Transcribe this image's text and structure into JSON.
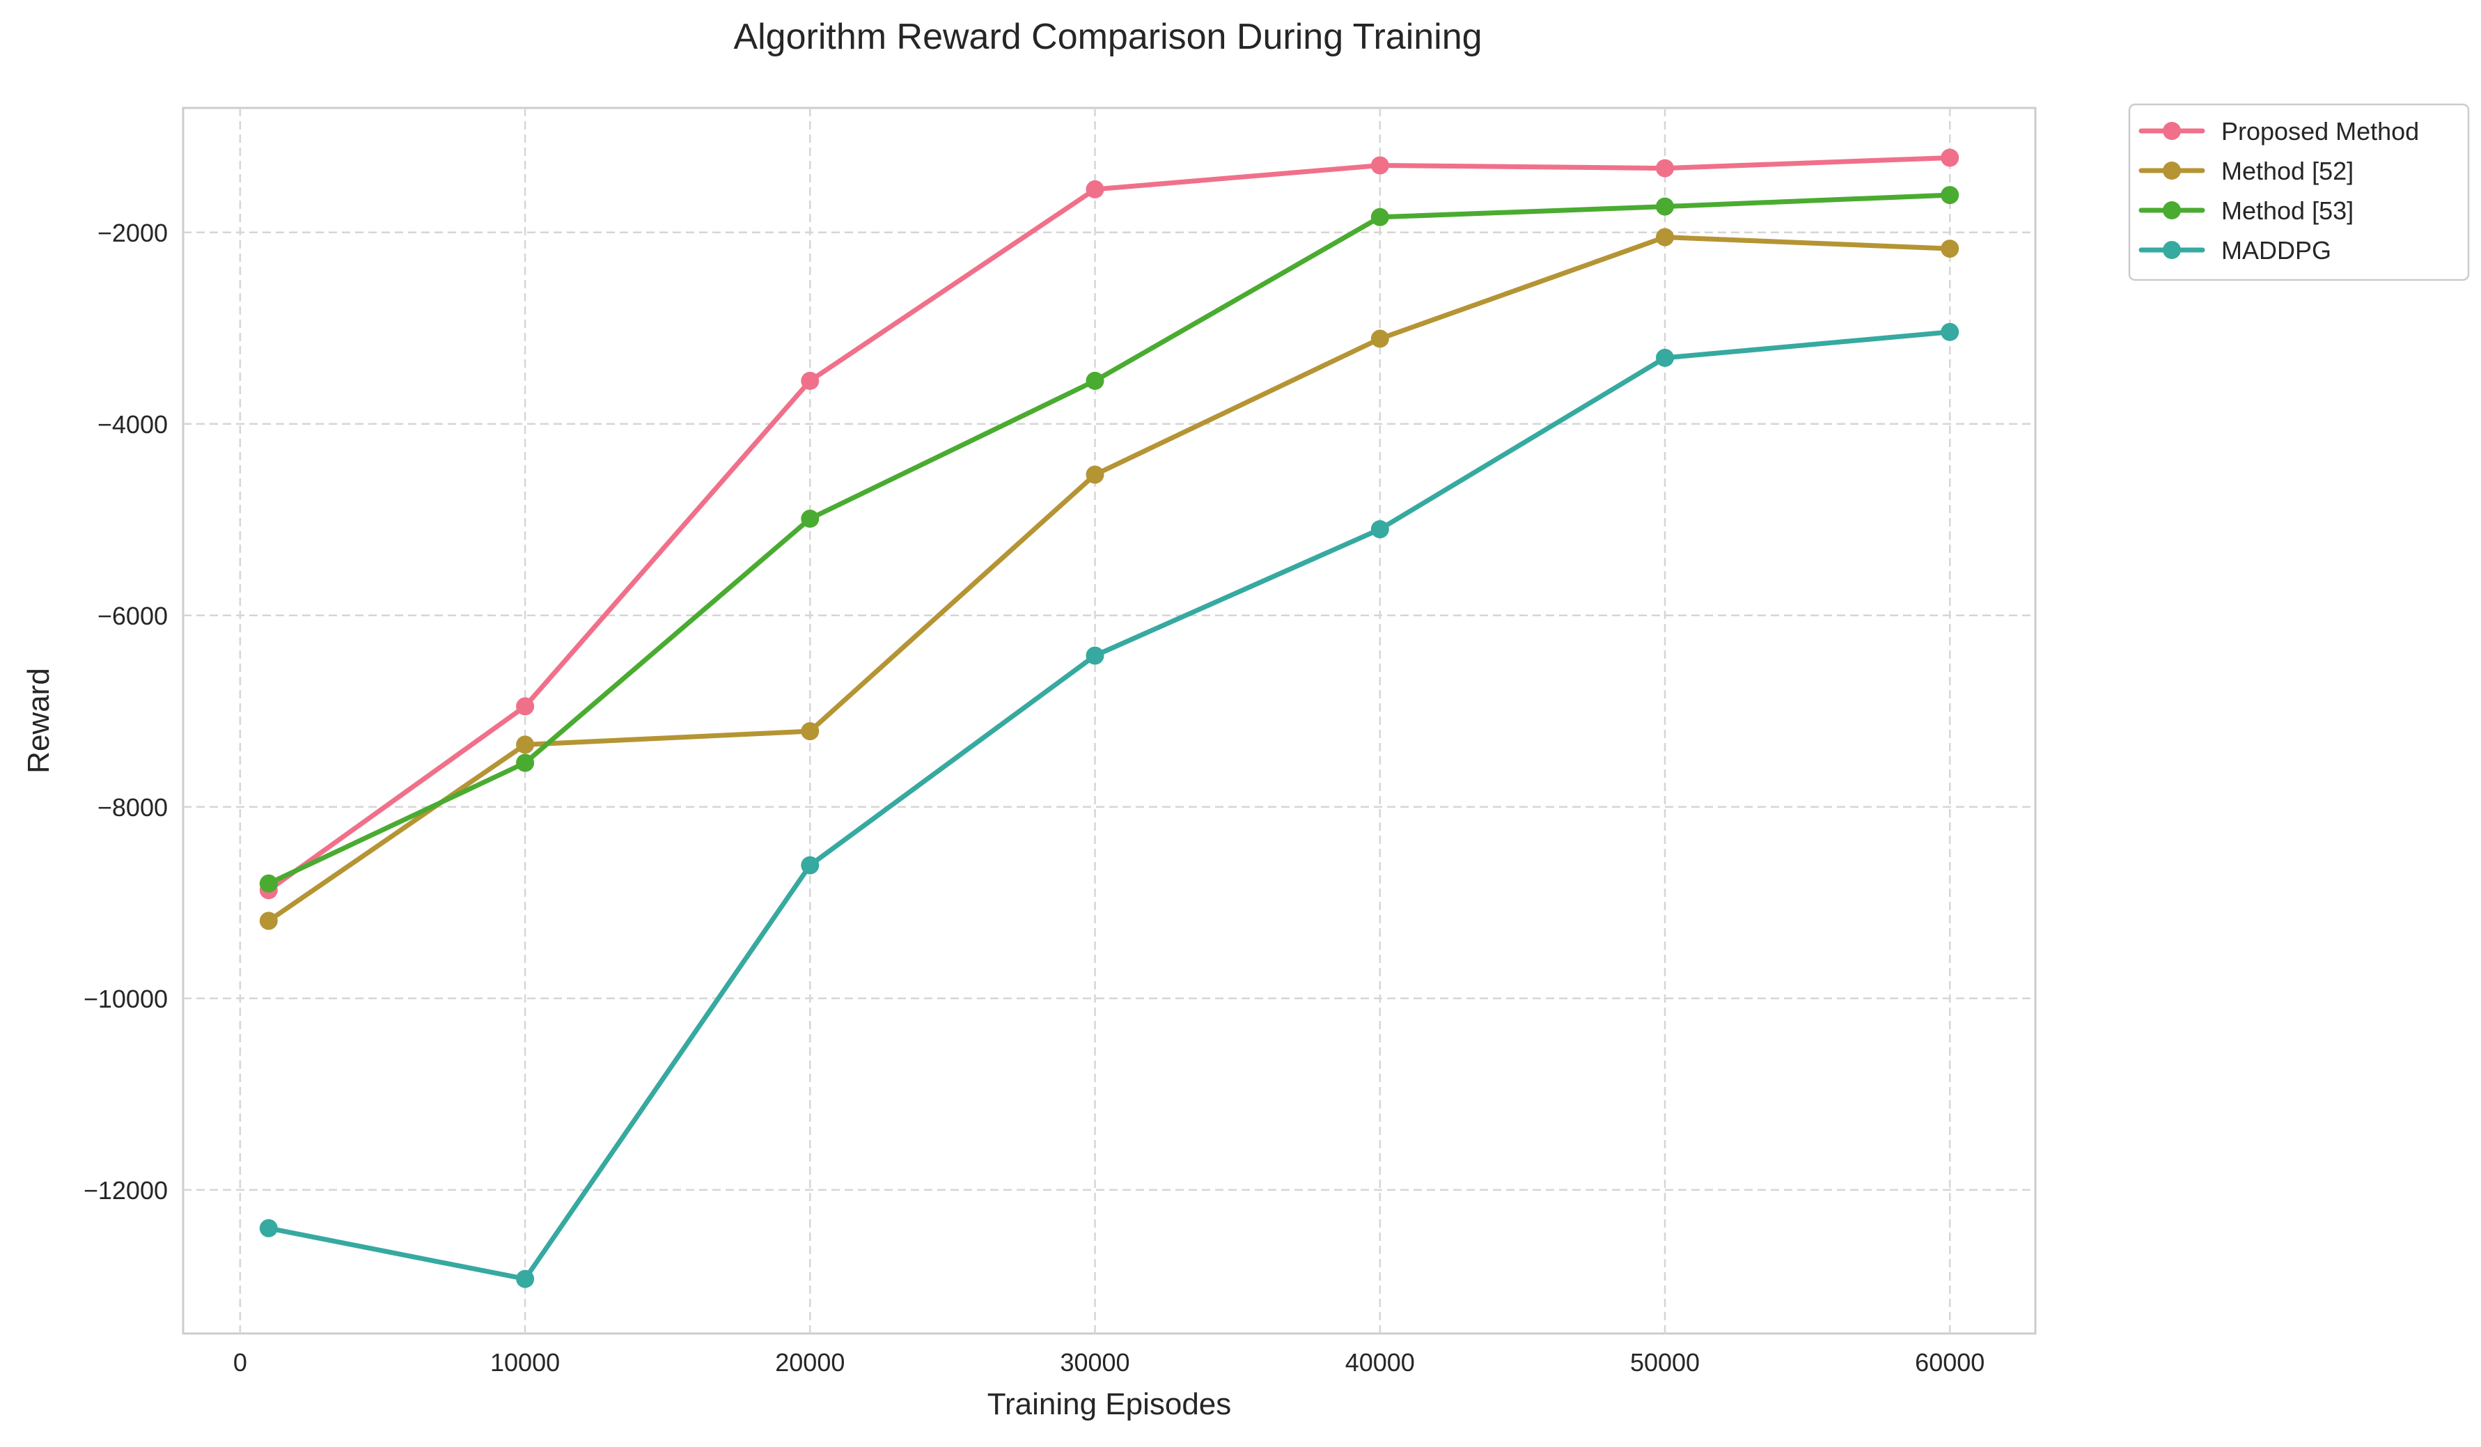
{
  "chart_data": {
    "type": "line",
    "title": "Algorithm Reward Comparison During Training",
    "xlabel": "Training Episodes",
    "ylabel": "Reward",
    "xlim": [
      -2000,
      63000
    ],
    "ylim": [
      -13500,
      -700
    ],
    "x_ticks": [
      0,
      10000,
      20000,
      30000,
      40000,
      50000,
      60000
    ],
    "y_ticks": [
      -12000,
      -10000,
      -8000,
      -6000,
      -4000,
      -2000
    ],
    "grid": true,
    "legend_position": "outside-top-right",
    "x": [
      1000,
      10000,
      20000,
      30000,
      40000,
      50000,
      60000
    ],
    "series": [
      {
        "name": "Proposed Method",
        "color": "#f0708a",
        "values": [
          -8870,
          -6950,
          -3550,
          -1550,
          -1300,
          -1330,
          -1220
        ]
      },
      {
        "name": "Method [52]",
        "color": "#b59434",
        "values": [
          -9190,
          -7350,
          -7210,
          -4530,
          -3110,
          -2050,
          -2170
        ]
      },
      {
        "name": "Method [53]",
        "color": "#4aab31",
        "values": [
          -8800,
          -7540,
          -4990,
          -3550,
          -1840,
          -1730,
          -1610
        ]
      },
      {
        "name": "MADDPG",
        "color": "#36a9a0",
        "values": [
          -12400,
          -12930,
          -8610,
          -6420,
          -5100,
          -3310,
          -3040
        ]
      }
    ]
  }
}
